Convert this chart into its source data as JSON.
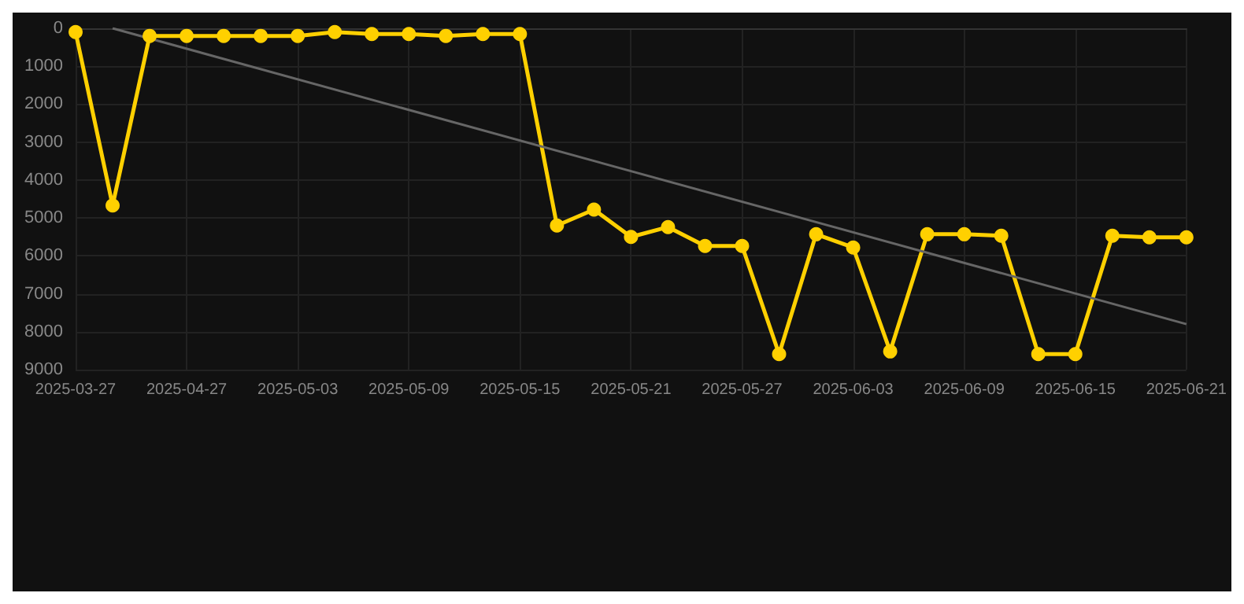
{
  "chart_data": {
    "type": "line",
    "categories": [
      "2025-03-27",
      null,
      null,
      "2025-04-27",
      null,
      null,
      "2025-05-03",
      null,
      null,
      "2025-05-09",
      null,
      null,
      "2025-05-15",
      null,
      null,
      "2025-05-21",
      null,
      null,
      "2025-05-27",
      null,
      null,
      "2025-06-03",
      null,
      null,
      "2025-06-09",
      null,
      null,
      "2025-06-15",
      null,
      null,
      "2025-06-21"
    ],
    "series": [
      {
        "color": "#ffd000",
        "values": [
          100,
          4670,
          200,
          200,
          200,
          200,
          200,
          100,
          150,
          150,
          200,
          150,
          150,
          5200,
          4780,
          5500,
          5240,
          5740,
          5740,
          8590,
          5430,
          5780,
          8520,
          5430,
          5430,
          5470,
          8590,
          8590,
          5470,
          5510,
          5510
        ]
      },
      {
        "type": "line",
        "color": "#666666",
        "marker": "none",
        "values": [
          null,
          0,
          null,
          null,
          null,
          null,
          null,
          null,
          null,
          null,
          null,
          null,
          null,
          null,
          null,
          null,
          null,
          null,
          null,
          null,
          null,
          null,
          null,
          null,
          null,
          null,
          null,
          null,
          null,
          null,
          7800
        ]
      }
    ],
    "ylim": [
      9000,
      0
    ],
    "yticks": [
      0,
      1000,
      2000,
      3000,
      4000,
      5000,
      6000,
      7000,
      8000,
      9000
    ],
    "grid": true,
    "marker": "circle"
  }
}
